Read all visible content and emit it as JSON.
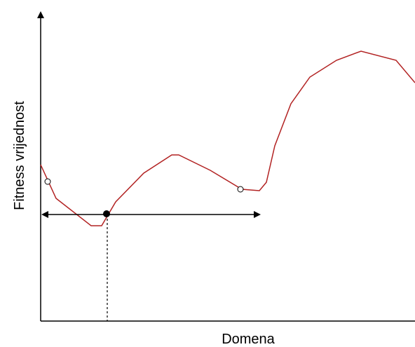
{
  "diagram": {
    "xlabel": "Domena",
    "ylabel": "Fitness vrijednost",
    "colors": {
      "curve": "#b22222",
      "axes": "#000000",
      "markers": "#000000"
    },
    "elements": [
      "fitness-curve",
      "local-minimum-point",
      "neighbourhood-range-arrow",
      "local-minimum-dropline",
      "hollow-point-left",
      "hollow-point-right"
    ]
  }
}
